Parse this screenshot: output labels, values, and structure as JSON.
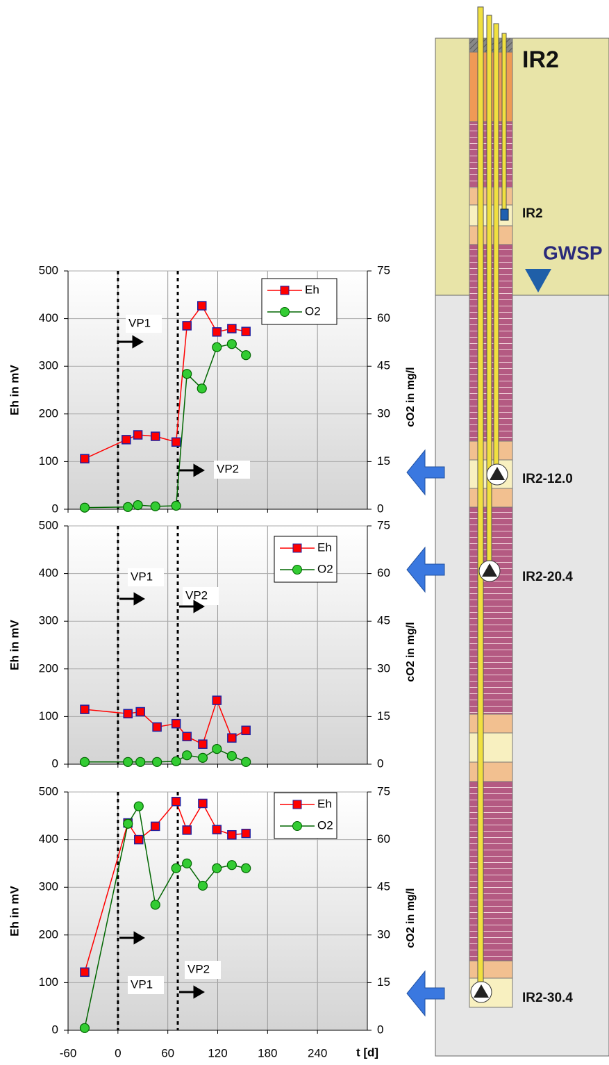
{
  "chart_data": [
    {
      "type": "line",
      "ylabel": "Eh in mV",
      "y2label": "cO2 in mg/l",
      "xlim": [
        -60,
        300
      ],
      "xticks": [
        -60,
        0,
        60,
        120,
        180,
        240
      ],
      "ylim": [
        0,
        500
      ],
      "yticks": [
        0,
        100,
        200,
        300,
        400,
        500
      ],
      "y2lim": [
        0,
        75
      ],
      "y2ticks": [
        0,
        15,
        30,
        45,
        60,
        75
      ],
      "grid": true,
      "legend": "upper right",
      "event_lines": [
        0,
        72
      ],
      "annotations": [
        "VP1",
        "VP2"
      ],
      "series": [
        {
          "name": "Eh",
          "color": "#ff0000",
          "marker_color": "#ff0000",
          "x": [
            -40,
            10,
            24,
            45,
            70,
            83,
            101,
            119,
            137,
            154
          ],
          "values": [
            106,
            146,
            156,
            153,
            141,
            385,
            427,
            372,
            379,
            373
          ]
        },
        {
          "name": "O2",
          "color": "#006600",
          "marker_color": "#33cc33",
          "axis": "y2",
          "x": [
            -40,
            12,
            24,
            45,
            70,
            83,
            101,
            119,
            137,
            154
          ],
          "values": [
            0.5,
            0.7,
            1.3,
            0.9,
            1.1,
            42.6,
            38,
            51,
            52,
            48.5
          ]
        }
      ]
    },
    {
      "type": "line",
      "ylabel": "Eh in mV",
      "y2label": "cO2 in mg/l",
      "xlim": [
        -60,
        300
      ],
      "xticks": [
        -60,
        0,
        60,
        120,
        180,
        240
      ],
      "ylim": [
        0,
        500
      ],
      "yticks": [
        0,
        100,
        200,
        300,
        400,
        500
      ],
      "y2lim": [
        0,
        75
      ],
      "y2ticks": [
        0,
        15,
        30,
        45,
        60,
        75
      ],
      "grid": true,
      "legend": "upper right",
      "event_lines": [
        0,
        72
      ],
      "annotations": [
        "VP1",
        "VP2"
      ],
      "series": [
        {
          "name": "Eh",
          "color": "#ff0000",
          "marker_color": "#ff0000",
          "x": [
            -40,
            12,
            27,
            47,
            70,
            83,
            102,
            119,
            137,
            154
          ],
          "values": [
            115,
            106,
            110,
            78,
            85,
            58,
            42,
            134,
            55,
            71
          ]
        },
        {
          "name": "O2",
          "color": "#006600",
          "marker_color": "#33cc33",
          "axis": "y2",
          "x": [
            -40,
            12,
            27,
            47,
            70,
            83,
            102,
            119,
            137,
            154
          ],
          "values": [
            0.7,
            0.7,
            0.7,
            0.7,
            0.9,
            2.8,
            2,
            4.8,
            2.6,
            0.7
          ]
        }
      ]
    },
    {
      "type": "line",
      "ylabel": "Eh in mV",
      "y2label": "cO2 in mg/l",
      "xlabel": "t [d]",
      "xlim": [
        -60,
        300
      ],
      "xticks": [
        -60,
        0,
        60,
        120,
        180,
        240
      ],
      "ylim": [
        0,
        500
      ],
      "yticks": [
        0,
        100,
        200,
        300,
        400,
        500
      ],
      "y2lim": [
        0,
        75
      ],
      "y2ticks": [
        0,
        15,
        30,
        45,
        60,
        75
      ],
      "grid": true,
      "legend": "upper right",
      "event_lines": [
        0,
        72
      ],
      "annotations": [
        "VP1",
        "VP2"
      ],
      "series": [
        {
          "name": "Eh",
          "color": "#ff0000",
          "marker_color": "#ff0000",
          "x": [
            -40,
            12,
            25,
            45,
            70,
            83,
            102,
            119,
            137,
            154
          ],
          "values": [
            122,
            435,
            400,
            428,
            480,
            420,
            476,
            421,
            410,
            413
          ]
        },
        {
          "name": "O2",
          "color": "#006600",
          "marker_color": "#33cc33",
          "axis": "y2",
          "x": [
            -40,
            12,
            25,
            45,
            70,
            83,
            102,
            119,
            137,
            154
          ],
          "values": [
            0.7,
            65,
            70.5,
            39.5,
            51,
            52.5,
            45.5,
            51,
            52,
            51
          ]
        }
      ]
    }
  ],
  "diagram": {
    "title": "IR2",
    "sensor": "IR2",
    "water_level": "GWSP",
    "pumps": [
      "IR2-12.0",
      "IR2-20.4",
      "IR2-30.4"
    ]
  }
}
